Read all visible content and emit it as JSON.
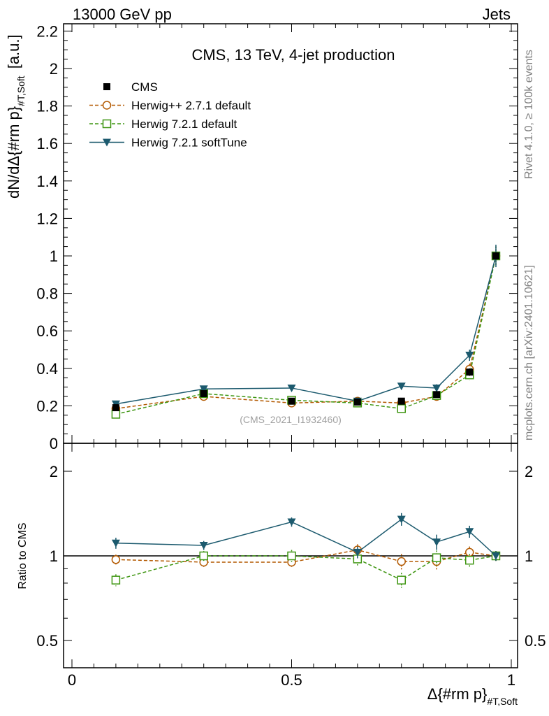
{
  "header": {
    "energy_label": "13000 GeV pp",
    "process_label": "Jets",
    "watermark_rivet": "Rivet 4.1.0, ≥ 100k events",
    "watermark_mcplots": "mcplots.cern.ch [arXiv:2401.10621]"
  },
  "chart_data": [
    {
      "panel": "main",
      "type": "scatter",
      "title": "CMS, 13 TeV, 4-jet production",
      "annotation": "(CMS_2021_I1932460)",
      "ylabel_main": "dN/dΔ{#rm p}",
      "ylabel_sub": "#T,Soft",
      "ylabel_unit": "[a.u.]",
      "xlabel_main": "Δ{#rm p}",
      "xlabel_sub": "#T,Soft",
      "xlim": [
        0,
        1
      ],
      "ylim": [
        0,
        2.25
      ],
      "x_ticks": [
        "0",
        "0.5",
        "1"
      ],
      "y_ticks": [
        "0",
        "0.2",
        "0.4",
        "0.6",
        "0.8",
        "1",
        "1.2",
        "1.4",
        "1.6",
        "1.8",
        "2",
        "2.2"
      ],
      "y_tick_values": [
        0,
        0.2,
        0.4,
        0.6,
        0.8,
        1,
        1.2,
        1.4,
        1.6,
        1.8,
        2,
        2.2
      ],
      "x": [
        0.1,
        0.3,
        0.5,
        0.65,
        0.75,
        0.83,
        0.905,
        0.965
      ],
      "legend": [
        {
          "name": "CMS",
          "color": "#000000",
          "marker": "square",
          "line": "none"
        },
        {
          "name": "Herwig++ 2.7.1 default",
          "color": "#b35900",
          "marker": "circle-open",
          "line": "dashed"
        },
        {
          "name": "Herwig 7.2.1 default",
          "color": "#3f9612",
          "marker": "square-open",
          "line": "dashed"
        },
        {
          "name": "Herwig 7.2.1 softTune",
          "color": "#1c5a6e",
          "marker": "triangle-down",
          "line": "solid"
        }
      ],
      "series": [
        {
          "name": "CMS",
          "values": [
            0.19,
            0.265,
            0.225,
            0.22,
            0.225,
            0.26,
            0.38,
            1.0
          ],
          "errors": [
            0.01,
            0.01,
            0.01,
            0.01,
            0.01,
            0.01,
            0.02,
            0.02
          ]
        },
        {
          "name": "Herwig++ 2.7.1 default",
          "values": [
            0.185,
            0.25,
            0.215,
            0.225,
            0.215,
            0.25,
            0.395,
            1.0
          ],
          "errors": [
            0.01,
            0.01,
            0.01,
            0.01,
            0.01,
            0.02,
            0.03,
            0.05
          ]
        },
        {
          "name": "Herwig 7.2.1 default",
          "values": [
            0.155,
            0.265,
            0.23,
            0.215,
            0.185,
            0.255,
            0.365,
            1.0
          ],
          "errors": [
            0.01,
            0.01,
            0.01,
            0.01,
            0.01,
            0.02,
            0.03,
            0.05
          ]
        },
        {
          "name": "Herwig 7.2.1 softTune",
          "values": [
            0.21,
            0.29,
            0.295,
            0.225,
            0.305,
            0.295,
            0.47,
            1.0
          ],
          "errors": [
            0.01,
            0.01,
            0.01,
            0.01,
            0.015,
            0.02,
            0.03,
            0.06
          ]
        }
      ]
    },
    {
      "panel": "ratio",
      "type": "scatter",
      "ylabel": "Ratio to CMS",
      "yscale": "log",
      "ylim": [
        0.4,
        2.5
      ],
      "y_ticks_left": [
        "0.5",
        "1",
        "2"
      ],
      "y_ticks_right": [
        "0.5",
        "1",
        "2"
      ],
      "y_tick_values": [
        0.5,
        1,
        2
      ],
      "reference": 1,
      "x": [
        0.1,
        0.3,
        0.5,
        0.65,
        0.75,
        0.83,
        0.905,
        0.965
      ],
      "series": [
        {
          "name": "Herwig++ 2.7.1 default",
          "values": [
            0.97,
            0.95,
            0.95,
            1.05,
            0.955,
            0.955,
            1.03,
            1.0
          ],
          "errors": [
            0.04,
            0.04,
            0.04,
            0.05,
            0.06,
            0.06,
            0.05,
            0.04
          ]
        },
        {
          "name": "Herwig 7.2.1 default",
          "values": [
            0.82,
            1.0,
            1.0,
            0.975,
            0.82,
            0.985,
            0.965,
            1.0
          ],
          "errors": [
            0.04,
            0.04,
            0.05,
            0.05,
            0.05,
            0.06,
            0.05,
            0.04
          ]
        },
        {
          "name": "Herwig 7.2.1 softTune",
          "values": [
            1.11,
            1.09,
            1.32,
            1.03,
            1.35,
            1.12,
            1.22,
            1.0
          ],
          "errors": [
            0.05,
            0.04,
            0.05,
            0.05,
            0.07,
            0.07,
            0.06,
            0.04
          ]
        }
      ]
    }
  ]
}
